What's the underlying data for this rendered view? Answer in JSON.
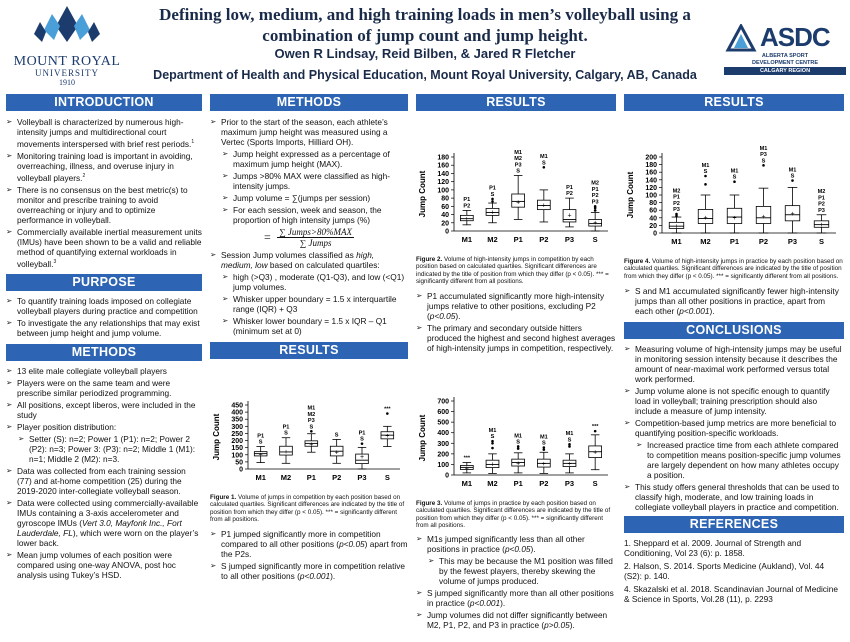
{
  "header": {
    "title": "Defining low, medium, and high training loads in men’s volleyball using a combination of jump count and jump height.",
    "authors": "Owen R Lindsay, Reid Bilben, & Jared R Fletcher",
    "department": "Department of Health and Physical Education, Mount Royal University, Calgary, AB, Canada",
    "left_logo": {
      "name": "MOUNT ROYAL",
      "sub": "UNIVERSITY",
      "year": "1910",
      "color": "#1d3c6e",
      "accent": "#4a9fd8"
    },
    "right_logo": {
      "name": "ASDC",
      "sub1": "ALBERTA SPORT",
      "sub2": "DEVELOPMENT CENTRE",
      "bar": "CALGARY REGION",
      "color": "#1d3c6e"
    }
  },
  "col1": {
    "intro_title": "INTRODUCTION",
    "intro": [
      "Volleyball is characterized by numerous high-intensity jumps and multidirectional court movements interspersed with brief rest periods.",
      "Monitoring training load is important in avoiding, overreaching, illness, and overuse injury in volleyball players.",
      "There is no consensus on the best metric(s) to monitor and prescribe training to avoid overreaching or injury and to optimize performance in volleyball.",
      "Commercially available inertial measurement units (IMUs) have been shown to be a valid and reliable method of quantifying external workloads in volleyball."
    ],
    "intro_sup": [
      "1",
      "2",
      "",
      "3"
    ],
    "purpose_title": "PURPOSE",
    "purpose": [
      "To quantify training loads imposed on collegiate volleyball players during practice and competition",
      "To investigate the any relationships that may exist between jump height and jump volume."
    ],
    "methods_title": "METHODS",
    "methods": [
      "13 elite male collegiate volleyball players",
      "Players were on the same team and were prescribe similar periodized programming.",
      "All positions, except liberos, were included in the study",
      "Player position distribution:"
    ],
    "methods_sub": "Setter (S): n=2; Power 1 (P1): n=2; Power 2 (P2): n=3; Power 3: (P3): n=2; Middle 1 (M1): n=1; Middle 2 (M2): n=3.",
    "methods2": [
      "Data was collected from each training session (77) and at-home competition (25) during the 2019-2020 inter-collegiate volleyball season.",
      "Mean jump volumes of each position were compared using one-way ANOVA, post hoc analysis using Tukey’s HSD."
    ],
    "imu_a": "Data were collected using commercially-available IMUs containing a 3-axis accelerometer and gyroscope IMUs (",
    "imu_i": "Vert 3.0, Mayfonk Inc., Fort Lauderdale, FL",
    "imu_b": "), which were worn on the player’s lower back."
  },
  "col2": {
    "methods_title": "METHODS",
    "m1": "Prior to the start of the season, each athlete’s maximum jump height was measured using a Vertec (Sports Imports, Hilliard OH).",
    "m1_sub": [
      "Jump height expressed as a percentage of maximum jump height (MAX).",
      "Jumps >80% MAX were classified as high-intensity jumps.",
      "Jump volume = ∑(jumps per session)",
      "For each session, week and season, the proportion of high intensity jumps (%)"
    ],
    "eq_lhs": "=",
    "eq_num": "∑ Jumps>80%MAX",
    "eq_den": "∑ Jumps",
    "m2_a": "Session Jump volumes classified as ",
    "m2_i": "high, medium, low",
    "m2_b": " based on calculated quartiles:",
    "m2_sub": [
      "high (>Q3) , moderate (Q1-Q3), and low (<Q1) jump volumes.",
      "Whisker upper boundary = 1.5 x interquartile range (IQR) + Q3",
      "Whisker lower boundary = 1.5 x IQR – Q1 (minimum set at 0)"
    ],
    "results_title": "RESULTS",
    "fig1_label": "Figure 1.",
    "fig1_cap": " Volume of jumps in competition by each position based on calculated quartiles. Significant differences are indicated by the title of position from which they differ (p < 0.05). *** = significantly different from all positions.",
    "r1_a": "P1 jumped significantly more in competition compared to all other positions (",
    "r1_i": "p<0.05",
    "r1_b": ") apart from the P2s.",
    "r2_a": "S jumped significantly more in competition relative to all other positions (",
    "r2_i": "p<0.001",
    "r2_b": ")."
  },
  "col3": {
    "results_title": "RESULTS",
    "fig2_label": "Figure 2.",
    "fig2_cap": " Volume of high-intensity jumps in competition by each position based on calculated quartiles. Significant differences are indicated by the title of position from which they differ (p < 0.05). *** = significantly different from all positions.",
    "r1_a": "P1 accumulated significantly more high-intensity jumps relative to other positions, excluding P2 (",
    "r1_i": "p<0.05",
    "r1_b": ").",
    "r2": "The primary and secondary outside hitters produced the highest and second highest averages of high-intensity jumps in competition, respectively.",
    "fig3_label": "Figure 3.",
    "fig3_cap": " Volume of jumps in practice by each position based on calculated quartiles. Significant differences are indicated by the title of position from which they differ (p < 0.05). *** = significantly different from all positions.",
    "r3_a": "M1s jumped significantly less than all other positions in practice (",
    "r3_i": "p<0.05",
    "r3_b": ").",
    "r3_sub": "This may be because the M1 position was filled by the fewest players, thereby skewing the volume of jumps produced.",
    "r4_a": "S jumped significantly more than all other positions in practice (",
    "r4_i": "p<0.001",
    "r4_b": ").",
    "r5_a": "Jump volumes did not differ significantly between M2, P1, P2, and P3 in practice (",
    "r5_i": "p>0.05",
    "r5_b": ")."
  },
  "col4": {
    "results_title": "RESULTS",
    "fig4_label": "Figure 4.",
    "fig4_cap": " Volume of high-intensity jumps in practice by each position based on calculated quartiles. Significant differences are indicated by the title of position from which they differ (p < 0.05). *** = significantly different from all positions.",
    "r1_a": "S and M1 accumulated significantly fewer high-intensity jumps than all other positions in practice, apart from each other (",
    "r1_i": "p<0.001",
    "r1_b": ").",
    "conclusions_title": "CONCLUSIONS",
    "c1": "Measuring volume of high-intensity jumps may be useful in monitoring session intensity because it describes the amount of near-maximal work performed versus total work performed.",
    "c2": "Jump volume alone is not specific enough to quantify load in volleyball; training prescription should also include a measure of jump intensity.",
    "c3": "Competition-based jump metrics are more beneficial to quantifying position-specific workloads.",
    "c3_sub": "Increased practice time from each athlete compared to competition means position-specific jump volumes are largely dependent on how many athletes occupy a position.",
    "c4": "This study offers general thresholds that can be used to classify high, moderate, and low training loads in collegiate volleyball players in practice and competition.",
    "references_title": "REFERENCES",
    "refs": [
      "1. Sheppard et al. 2009. Journal of Strength and Conditioning, Vol 23 (6): p. 1858.",
      "2. Halson, S. 2014. Sports Medicine (Aukland), Vol. 44 (S2): p. 140.",
      "4. Skazalski et al. 2018. Scandinavian Journal of Medicine & Science in Sports, Vol.28 (11), p. 2293"
    ]
  },
  "chart_data": [
    {
      "id": "fig1",
      "type": "boxplot",
      "ylabel": "Jump Count",
      "categories": [
        "M1",
        "M2",
        "P1",
        "P2",
        "P3",
        "S"
      ],
      "ylim": [
        0,
        450
      ],
      "yticks": [
        0,
        50,
        100,
        150,
        200,
        250,
        300,
        350,
        400,
        450
      ],
      "boxes": [
        {
          "lw": 45,
          "q1": 92,
          "med": 108,
          "q3": 122,
          "uw": 158,
          "mean": 105,
          "out": [],
          "labels": [
            "P1",
            "S"
          ]
        },
        {
          "lw": 40,
          "q1": 98,
          "med": 120,
          "q3": 160,
          "uw": 220,
          "mean": 128,
          "out": [],
          "labels": [
            "P1",
            "S"
          ]
        },
        {
          "lw": 118,
          "q1": 160,
          "med": 180,
          "q3": 198,
          "uw": 248,
          "mean": 178,
          "out": [
            265
          ],
          "labels": [
            "M1",
            "M2",
            "P3",
            "S"
          ]
        },
        {
          "lw": 40,
          "q1": 92,
          "med": 125,
          "q3": 160,
          "uw": 208,
          "mean": 122,
          "out": [],
          "labels": [
            "S"
          ]
        },
        {
          "lw": 0,
          "q1": 38,
          "med": 62,
          "q3": 105,
          "uw": 152,
          "mean": 90,
          "out": [
            178
          ],
          "labels": [
            "P1",
            "S"
          ]
        },
        {
          "lw": 158,
          "q1": 212,
          "med": 238,
          "q3": 262,
          "uw": 300,
          "mean": 240,
          "out": [
            390
          ],
          "labels": [
            "***"
          ]
        }
      ]
    },
    {
      "id": "fig2",
      "type": "boxplot",
      "ylabel": "Jump Count",
      "categories": [
        "M1",
        "M2",
        "P1",
        "P2",
        "P3",
        "S"
      ],
      "ylim": [
        0,
        180
      ],
      "yticks": [
        0,
        20,
        40,
        60,
        80,
        100,
        120,
        140,
        160,
        180
      ],
      "boxes": [
        {
          "lw": 15,
          "q1": 25,
          "med": 30,
          "q3": 38,
          "uw": 50,
          "mean": 32,
          "out": [],
          "labels": [
            "P1",
            "P2"
          ]
        },
        {
          "lw": 20,
          "q1": 38,
          "med": 45,
          "q3": 55,
          "uw": 68,
          "mean": 47,
          "out": [
            72,
            78
          ],
          "labels": [
            "P1",
            "S"
          ]
        },
        {
          "lw": 28,
          "q1": 58,
          "med": 72,
          "q3": 90,
          "uw": 135,
          "mean": 72,
          "out": [],
          "labels": [
            "M1",
            "M2",
            "P3",
            "S"
          ]
        },
        {
          "lw": 22,
          "q1": 52,
          "med": 62,
          "q3": 75,
          "uw": 100,
          "mean": 65,
          "out": [
            155
          ],
          "labels": [
            "M1",
            "S"
          ]
        },
        {
          "lw": 10,
          "q1": 22,
          "med": 28,
          "q3": 52,
          "uw": 80,
          "mean": 40,
          "out": [],
          "labels": [
            "P1",
            "P2"
          ]
        },
        {
          "lw": 0,
          "q1": 12,
          "med": 18,
          "q3": 28,
          "uw": 45,
          "mean": 22,
          "out": [
            50,
            56,
            60
          ],
          "labels": [
            "M2",
            "P1",
            "P2",
            "P3"
          ]
        }
      ]
    },
    {
      "id": "fig3",
      "type": "boxplot",
      "ylabel": "Jump Count",
      "categories": [
        "M1",
        "M2",
        "P1",
        "P2",
        "P3",
        "S"
      ],
      "ylim": [
        0,
        700
      ],
      "yticks": [
        0,
        100,
        200,
        300,
        400,
        500,
        600,
        700
      ],
      "boxes": [
        {
          "lw": 20,
          "q1": 52,
          "med": 72,
          "q3": 90,
          "uw": 118,
          "mean": 72,
          "out": [],
          "labels": [
            "***"
          ]
        },
        {
          "lw": 15,
          "q1": 70,
          "med": 100,
          "q3": 140,
          "uw": 200,
          "mean": 110,
          "out": [
            255,
            300,
            320
          ],
          "labels": [
            "M1",
            "S"
          ]
        },
        {
          "lw": 20,
          "q1": 85,
          "med": 118,
          "q3": 150,
          "uw": 210,
          "mean": 120,
          "out": [
            250,
            270
          ],
          "labels": [
            "M1",
            "S"
          ]
        },
        {
          "lw": 15,
          "q1": 75,
          "med": 110,
          "q3": 150,
          "uw": 215,
          "mean": 115,
          "out": [
            240,
            260
          ],
          "labels": [
            "M1",
            "S"
          ]
        },
        {
          "lw": 20,
          "q1": 80,
          "med": 110,
          "q3": 140,
          "uw": 200,
          "mean": 112,
          "out": [
            270,
            290
          ],
          "labels": [
            "M1",
            "S"
          ]
        },
        {
          "lw": 50,
          "q1": 165,
          "med": 220,
          "q3": 275,
          "uw": 380,
          "mean": 220,
          "out": [
            415
          ],
          "labels": [
            "***"
          ]
        }
      ]
    },
    {
      "id": "fig4",
      "type": "boxplot",
      "ylabel": "Jump Count",
      "categories": [
        "M1",
        "M2",
        "P1",
        "P2",
        "P3",
        "S"
      ],
      "ylim": [
        0,
        200
      ],
      "yticks": [
        0,
        20,
        40,
        60,
        80,
        100,
        120,
        140,
        160,
        180,
        200
      ],
      "boxes": [
        {
          "lw": 0,
          "q1": 12,
          "med": 18,
          "q3": 28,
          "uw": 42,
          "mean": 20,
          "out": [
            45,
            50
          ],
          "labels": [
            "M2",
            "P1",
            "P2",
            "P3"
          ]
        },
        {
          "lw": 0,
          "q1": 25,
          "med": 38,
          "q3": 62,
          "uw": 100,
          "mean": 42,
          "out": [
            128,
            150
          ],
          "labels": [
            "M1",
            "S"
          ]
        },
        {
          "lw": 0,
          "q1": 25,
          "med": 42,
          "q3": 65,
          "uw": 100,
          "mean": 42,
          "out": [
            135
          ],
          "labels": [
            "M1",
            "S"
          ]
        },
        {
          "lw": 0,
          "q1": 25,
          "med": 40,
          "q3": 70,
          "uw": 118,
          "mean": 45,
          "out": [
            178
          ],
          "labels": [
            "M1",
            "P3",
            "S"
          ]
        },
        {
          "lw": 0,
          "q1": 32,
          "med": 48,
          "q3": 72,
          "uw": 120,
          "mean": 52,
          "out": [
            138
          ],
          "labels": [
            "M1",
            "S"
          ]
        },
        {
          "lw": 0,
          "q1": 15,
          "med": 22,
          "q3": 32,
          "uw": 48,
          "mean": 24,
          "out": [],
          "labels": [
            "M2",
            "P1",
            "P2",
            "P3"
          ]
        }
      ]
    }
  ]
}
